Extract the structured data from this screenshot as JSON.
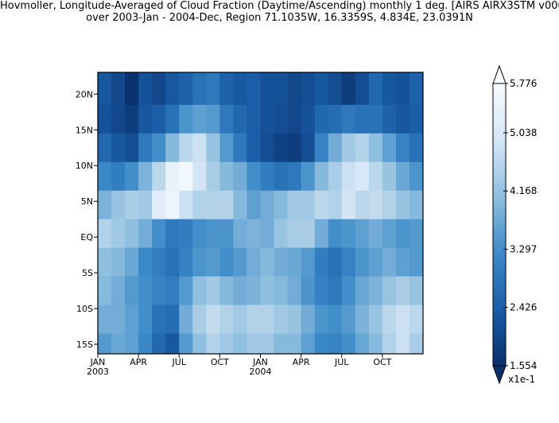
{
  "title": {
    "line1": "Hovmoller, Longitude-Averaged of Cloud Fraction (Daytime/Ascending) monthly 1 deg. [AIRS AIRX3STM v006]",
    "line2": "over 2003-Jan - 2004-Dec, Region 71.1035W, 16.3359S, 4.834E, 23.0391N"
  },
  "chart_data": {
    "type": "heatmap",
    "title": "Hovmoller, Longitude-Averaged of Cloud Fraction (Daytime/Ascending) monthly 1 deg. [AIRS AIRX3STM v006]",
    "subtitle": "over 2003-Jan - 2004-Dec, Region 71.1035W, 16.3359S, 4.834E, 23.0391N",
    "x_ticks": [
      {
        "label": "JAN",
        "sub": "2003"
      },
      {
        "label": "APR",
        "sub": ""
      },
      {
        "label": "JUL",
        "sub": ""
      },
      {
        "label": "OCT",
        "sub": ""
      },
      {
        "label": "JAN",
        "sub": "2004"
      },
      {
        "label": "APR",
        "sub": ""
      },
      {
        "label": "JUL",
        "sub": ""
      },
      {
        "label": "OCT",
        "sub": ""
      }
    ],
    "x_tick_months": [
      0,
      3,
      6,
      9,
      12,
      15,
      18,
      21
    ],
    "y_ticks": [
      {
        "label": "20N",
        "lat": 20
      },
      {
        "label": "15N",
        "lat": 15
      },
      {
        "label": "10N",
        "lat": 10
      },
      {
        "label": "5N",
        "lat": 5
      },
      {
        "label": "EQ",
        "lat": 0
      },
      {
        "label": "5S",
        "lat": -5
      },
      {
        "label": "10S",
        "lat": -10
      },
      {
        "label": "15S",
        "lat": -15
      }
    ],
    "xlim_months": [
      0,
      24
    ],
    "ylim_lat": [
      -16.3359,
      23.0391
    ],
    "color_scale": {
      "min": 1.554,
      "max": 5.776,
      "ticks": [
        "5.776",
        "5.038",
        "4.168",
        "3.297",
        "2.426",
        "1.554"
      ],
      "tick_values": [
        5.776,
        5.038,
        4.168,
        3.297,
        2.426,
        1.554
      ],
      "multiplier_label": "x1e-1",
      "colors": [
        "#08306b",
        "#1a5da8",
        "#3c8ac8",
        "#8fbfdf",
        "#d6e6f5",
        "#f7fbff"
      ]
    },
    "latitude_bands": [
      {
        "lat_min": 18.5,
        "lat_max": 23.0391,
        "values": [
          2.3,
          2.0,
          1.6,
          2.2,
          2.0,
          2.3,
          2.5,
          2.8,
          2.9,
          2.5,
          2.3,
          2.4,
          2.2,
          2.2,
          2.0,
          2.1,
          2.3,
          2.1,
          1.8,
          2.1,
          2.6,
          2.3,
          2.2,
          2.5
        ]
      },
      {
        "lat_min": 14.5,
        "lat_max": 18.5,
        "values": [
          2.2,
          2.0,
          1.8,
          2.3,
          2.4,
          2.8,
          3.4,
          3.6,
          3.5,
          2.9,
          2.6,
          2.4,
          2.2,
          2.1,
          2.0,
          2.2,
          2.6,
          2.7,
          2.9,
          2.8,
          2.8,
          2.5,
          2.3,
          2.4
        ]
      },
      {
        "lat_min": 10.5,
        "lat_max": 14.5,
        "values": [
          2.6,
          2.3,
          2.1,
          2.9,
          3.3,
          4.0,
          4.6,
          4.8,
          4.2,
          3.5,
          2.9,
          2.4,
          2.1,
          1.9,
          1.8,
          2.1,
          3.1,
          3.8,
          4.3,
          4.5,
          4.1,
          3.6,
          3.1,
          2.8
        ]
      },
      {
        "lat_min": 6.5,
        "lat_max": 10.5,
        "values": [
          3.2,
          3.0,
          3.3,
          3.9,
          4.6,
          5.4,
          5.6,
          4.9,
          4.4,
          4.0,
          3.8,
          3.3,
          3.0,
          2.8,
          2.9,
          3.4,
          4.0,
          4.4,
          4.8,
          5.0,
          4.6,
          4.2,
          3.7,
          3.4
        ]
      },
      {
        "lat_min": 2.5,
        "lat_max": 6.5,
        "values": [
          3.9,
          4.2,
          4.4,
          4.3,
          5.2,
          5.5,
          4.8,
          4.5,
          4.5,
          4.5,
          4.0,
          3.6,
          3.8,
          4.0,
          4.3,
          4.3,
          4.6,
          4.5,
          4.9,
          4.6,
          4.7,
          4.5,
          4.2,
          4.0
        ]
      },
      {
        "lat_min": -1.5,
        "lat_max": 2.5,
        "values": [
          4.5,
          4.3,
          4.1,
          3.8,
          3.3,
          2.9,
          3.0,
          3.3,
          3.4,
          3.4,
          3.8,
          3.9,
          3.8,
          4.2,
          4.4,
          4.4,
          3.8,
          3.3,
          3.4,
          3.6,
          3.8,
          3.6,
          3.4,
          3.5
        ]
      },
      {
        "lat_min": -5.5,
        "lat_max": -1.5,
        "values": [
          4.1,
          4.0,
          3.7,
          3.2,
          3.0,
          2.8,
          3.1,
          3.4,
          3.5,
          3.3,
          3.5,
          3.8,
          4.0,
          3.8,
          3.7,
          3.5,
          3.0,
          2.8,
          3.1,
          3.4,
          3.6,
          3.8,
          3.6,
          3.5
        ]
      },
      {
        "lat_min": -9.5,
        "lat_max": -5.5,
        "values": [
          4.0,
          3.8,
          3.5,
          3.3,
          3.1,
          3.0,
          3.5,
          4.1,
          4.3,
          4.0,
          3.8,
          3.9,
          4.1,
          4.0,
          3.8,
          3.4,
          3.1,
          2.9,
          3.3,
          3.7,
          3.9,
          4.2,
          4.4,
          4.2
        ]
      },
      {
        "lat_min": -13.5,
        "lat_max": -9.5,
        "values": [
          3.8,
          3.8,
          3.6,
          3.3,
          2.8,
          2.7,
          3.8,
          4.4,
          4.7,
          4.5,
          4.3,
          4.5,
          4.5,
          4.3,
          4.2,
          3.8,
          3.4,
          3.3,
          3.5,
          3.9,
          4.2,
          4.6,
          4.8,
          4.6
        ]
      },
      {
        "lat_min": -16.3359,
        "lat_max": -13.5,
        "values": [
          3.5,
          3.7,
          3.6,
          3.2,
          2.6,
          2.3,
          3.5,
          4.1,
          4.5,
          4.3,
          4.1,
          4.3,
          4.3,
          4.0,
          4.0,
          3.6,
          3.2,
          3.1,
          3.3,
          3.7,
          4.0,
          4.5,
          4.8,
          4.4
        ]
      }
    ]
  }
}
